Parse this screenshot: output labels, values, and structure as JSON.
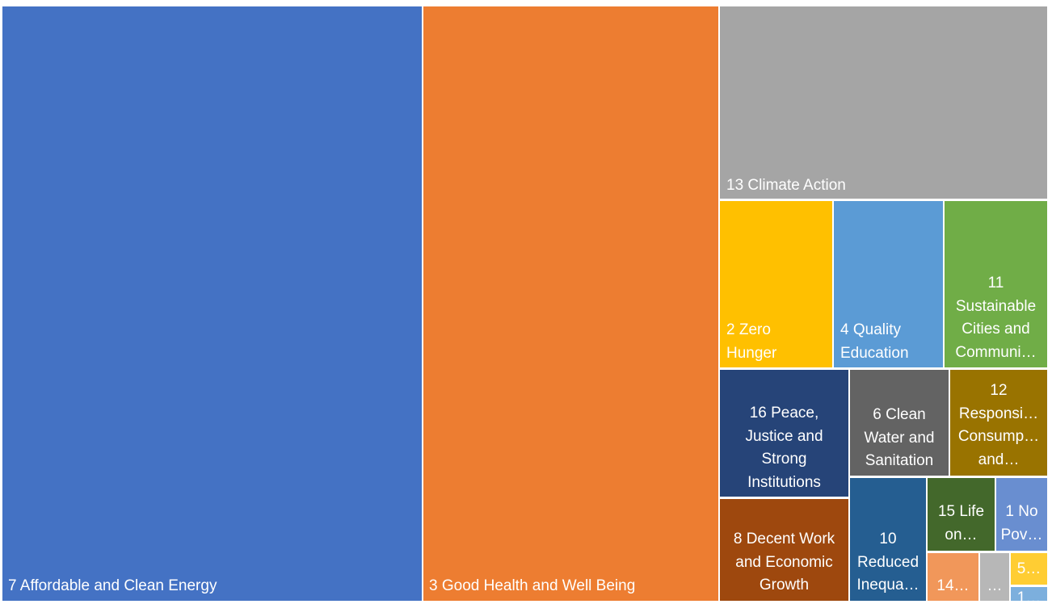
{
  "chart_data": {
    "type": "treemap",
    "title": "",
    "tiles": [
      {
        "id": "t7",
        "label": "7 Affordable and Clean Energy",
        "label_align": "left",
        "color": "#4472C4",
        "value": 38.6
      },
      {
        "id": "t3",
        "label": "3 Good Health and Well Being",
        "label_align": "left",
        "color": "#ED7D31",
        "value": 27.3
      },
      {
        "id": "t13",
        "label": "13 Climate Action",
        "label_align": "left",
        "color": "#A5A5A5",
        "value": 9.9
      },
      {
        "id": "t2",
        "label": "2 Zero\nHunger",
        "label_align": "left",
        "color": "#FFC000",
        "value": 3.5
      },
      {
        "id": "t4",
        "label": "4 Quality\nEducation",
        "label_align": "left",
        "color": "#5B9BD5",
        "value": 3.5
      },
      {
        "id": "t11",
        "label": "11\nSustainable\nCities and\nCommuni…",
        "label_align": "center",
        "color": "#70AD47",
        "value": 3.2
      },
      {
        "id": "t16",
        "label": "16 Peace,\nJustice and\nStrong\nInstitutions",
        "label_align": "center",
        "color": "#264478",
        "value": 2.5
      },
      {
        "id": "t6",
        "label": "6 Clean\nWater and\nSanitation",
        "label_align": "center",
        "color": "#636363",
        "value": 1.9
      },
      {
        "id": "t12",
        "label": "12\nResponsi…\nConsump…\nand…",
        "label_align": "center",
        "color": "#997300",
        "value": 1.8
      },
      {
        "id": "t8",
        "label": "8 Decent Work\nand Economic\nGrowth",
        "label_align": "center",
        "color": "#9E480E",
        "value": 2.2
      },
      {
        "id": "t10",
        "label": "10\nReduced\nInequa…",
        "label_align": "center",
        "color": "#255E91",
        "value": 1.6
      },
      {
        "id": "t15",
        "label": "15 Life\non…",
        "label_align": "center",
        "color": "#43682B",
        "value": 0.9
      },
      {
        "id": "t1",
        "label": "1 No\nPov…",
        "label_align": "center",
        "color": "#698ED0",
        "value": 0.8
      },
      {
        "id": "t14",
        "label": "14…",
        "label_align": "center",
        "color": "#F1975A",
        "value": 0.6
      },
      {
        "id": "tX",
        "label": "…",
        "label_align": "center",
        "color": "#B7B7B7",
        "value": 0.4
      },
      {
        "id": "t5",
        "label": "5…",
        "label_align": "center",
        "color": "#FFCD33",
        "value": 0.3
      },
      {
        "id": "t17",
        "label": "1…",
        "label_align": "center",
        "color": "#7CAFDD",
        "value": 0.2
      }
    ]
  }
}
